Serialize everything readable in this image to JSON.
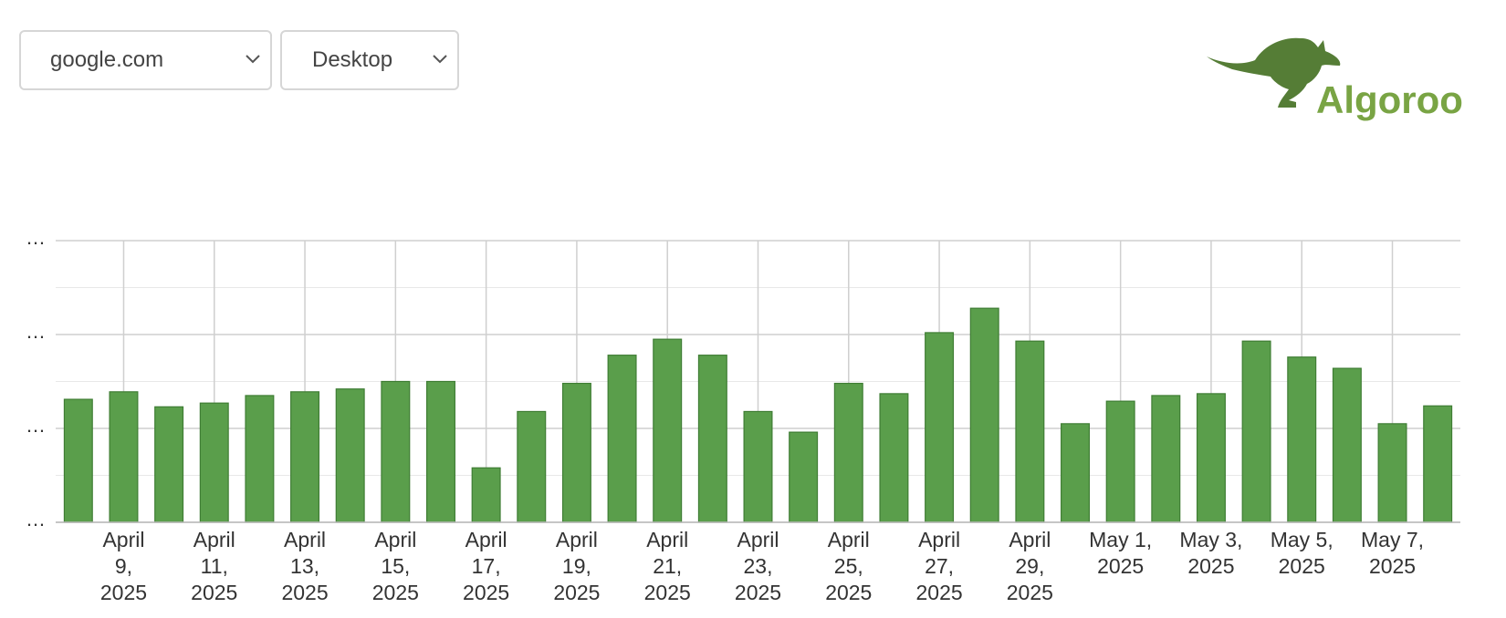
{
  "controls": {
    "domain_select": "google.com",
    "device_select": "Desktop"
  },
  "logo": "Algoroo",
  "chart_data": {
    "type": "bar",
    "categories": [
      null,
      "April 9, 2025",
      null,
      "April 11, 2025",
      null,
      "April 13, 2025",
      null,
      "April 15, 2025",
      null,
      "April 17, 2025",
      null,
      "April 19, 2025",
      null,
      "April 21, 2025",
      null,
      "April 23, 2025",
      null,
      "April 25, 2025",
      null,
      "April 27, 2025",
      null,
      "April 29, 2025",
      null,
      "May 1, 2025",
      null,
      "May 3, 2025",
      null,
      "May 5, 2025",
      null,
      "May 7, 2025",
      null
    ],
    "values": [
      1.31,
      1.39,
      1.23,
      1.27,
      1.35,
      1.39,
      1.42,
      1.5,
      1.5,
      0.58,
      1.18,
      1.48,
      1.78,
      1.95,
      1.78,
      1.18,
      0.96,
      1.48,
      1.37,
      2.02,
      2.28,
      1.93,
      1.05,
      1.29,
      1.35,
      1.37,
      1.93,
      1.76,
      1.64,
      1.05,
      1.24
    ],
    "color": "#5a9e4b",
    "ylim": [
      0,
      3
    ],
    "yticks": [
      {
        "value": 0,
        "label": "…"
      },
      {
        "value": 1,
        "label": "…"
      },
      {
        "value": 2,
        "label": "…"
      },
      {
        "value": 3,
        "label": "…"
      }
    ],
    "minor_yticks": [
      0.5,
      1.5,
      2.5
    ],
    "grid": true
  }
}
